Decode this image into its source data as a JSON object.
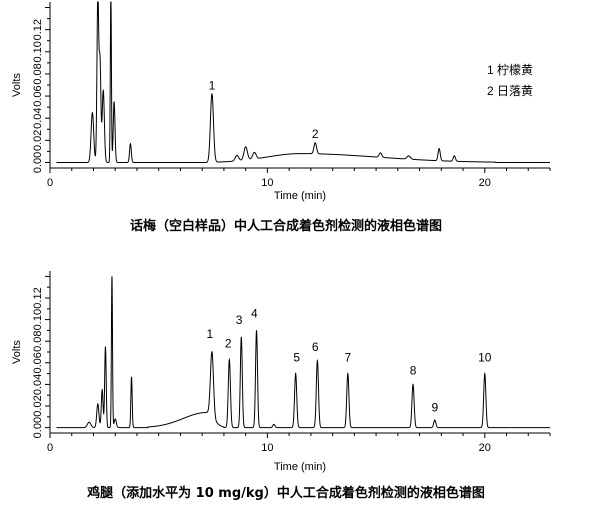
{
  "chart_data": [
    {
      "type": "line",
      "title": "话梅（空白样品）中人工合成着色剂检测的液相色谱图",
      "xlabel": "Time (min)",
      "ylabel": "Volts",
      "xlim": [
        0,
        23
      ],
      "ylim": [
        -0.005,
        0.145
      ],
      "x_ticks": [
        0,
        10,
        20
      ],
      "y_ticks": [
        0.0,
        0.02,
        0.04,
        0.06,
        0.08,
        0.1,
        0.12
      ],
      "y_tick_labels": [
        "0.00",
        "0.02",
        "0.04",
        "0.06",
        "0.08",
        "0.10",
        "0.12"
      ],
      "grid": false,
      "legend": [
        "1 柠檬黄",
        "2 日落黄"
      ],
      "baseline": 0.0,
      "hump": {
        "start": 7.6,
        "end": 20.5,
        "center": 11.5,
        "height": 0.008
      },
      "peaks": [
        {
          "t": 1.95,
          "h": 0.045,
          "w": 0.06
        },
        {
          "t": 2.2,
          "h": 0.15,
          "w": 0.04
        },
        {
          "t": 2.3,
          "h": 0.09,
          "w": 0.04
        },
        {
          "t": 2.45,
          "h": 0.065,
          "w": 0.05
        },
        {
          "t": 2.8,
          "h": 0.152,
          "w": 0.025
        },
        {
          "t": 2.95,
          "h": 0.055,
          "w": 0.04
        },
        {
          "t": 3.7,
          "h": 0.017,
          "w": 0.04
        },
        {
          "t": 7.45,
          "h": 0.062,
          "w": 0.07
        },
        {
          "t": 8.6,
          "h": 0.005,
          "w": 0.08
        },
        {
          "t": 9.0,
          "h": 0.012,
          "w": 0.08
        },
        {
          "t": 9.4,
          "h": 0.006,
          "w": 0.08
        },
        {
          "t": 12.2,
          "h": 0.01,
          "w": 0.06
        },
        {
          "t": 15.2,
          "h": 0.004,
          "w": 0.06
        },
        {
          "t": 16.5,
          "h": 0.003,
          "w": 0.08
        },
        {
          "t": 17.9,
          "h": 0.011,
          "w": 0.05
        },
        {
          "t": 18.6,
          "h": 0.005,
          "w": 0.05
        }
      ],
      "annotations": [
        {
          "label": "1",
          "t": 7.45,
          "v": 0.066
        },
        {
          "label": "2",
          "t": 12.2,
          "v": 0.022
        }
      ]
    },
    {
      "type": "line",
      "title": "鸡腿（添加水平为 10 mg/kg）中人工合成着色剂检测的液相色谱图",
      "xlabel": "Time (min)",
      "ylabel": "Volts",
      "xlim": [
        0,
        23
      ],
      "ylim": [
        -0.005,
        0.145
      ],
      "x_ticks": [
        0,
        10,
        20
      ],
      "y_ticks": [
        0.0,
        0.02,
        0.04,
        0.06,
        0.08,
        0.1,
        0.12
      ],
      "y_tick_labels": [
        "0.00",
        "0.02",
        "0.04",
        "0.06",
        "0.08",
        "0.10",
        "0.12"
      ],
      "grid": false,
      "baseline": 0.0,
      "hump": {
        "start": 4.5,
        "end": 8.0,
        "center": 7.2,
        "height": 0.014
      },
      "peaks": [
        {
          "t": 1.8,
          "h": 0.005,
          "w": 0.08
        },
        {
          "t": 2.2,
          "h": 0.022,
          "w": 0.05
        },
        {
          "t": 2.4,
          "h": 0.035,
          "w": 0.04
        },
        {
          "t": 2.55,
          "h": 0.075,
          "w": 0.035
        },
        {
          "t": 2.85,
          "h": 0.14,
          "w": 0.025
        },
        {
          "t": 3.0,
          "h": 0.008,
          "w": 0.05
        },
        {
          "t": 3.75,
          "h": 0.047,
          "w": 0.03
        },
        {
          "t": 7.45,
          "h": 0.06,
          "w": 0.07
        },
        {
          "t": 8.25,
          "h": 0.063,
          "w": 0.05
        },
        {
          "t": 8.8,
          "h": 0.084,
          "w": 0.045
        },
        {
          "t": 9.5,
          "h": 0.09,
          "w": 0.045
        },
        {
          "t": 10.3,
          "h": 0.003,
          "w": 0.05
        },
        {
          "t": 11.3,
          "h": 0.05,
          "w": 0.05
        },
        {
          "t": 12.3,
          "h": 0.062,
          "w": 0.05
        },
        {
          "t": 13.7,
          "h": 0.05,
          "w": 0.05
        },
        {
          "t": 16.7,
          "h": 0.04,
          "w": 0.05
        },
        {
          "t": 17.7,
          "h": 0.007,
          "w": 0.05
        },
        {
          "t": 20.0,
          "h": 0.05,
          "w": 0.05
        }
      ],
      "annotations": [
        {
          "label": "1",
          "t": 7.35,
          "v": 0.083
        },
        {
          "label": "2",
          "t": 8.2,
          "v": 0.074
        },
        {
          "label": "3",
          "t": 8.7,
          "v": 0.096
        },
        {
          "label": "4",
          "t": 9.4,
          "v": 0.102
        },
        {
          "label": "5",
          "t": 11.35,
          "v": 0.061
        },
        {
          "label": "6",
          "t": 12.2,
          "v": 0.071
        },
        {
          "label": "7",
          "t": 13.7,
          "v": 0.061
        },
        {
          "label": "8",
          "t": 16.7,
          "v": 0.049
        },
        {
          "label": "9",
          "t": 17.7,
          "v": 0.015
        },
        {
          "label": "10",
          "t": 20.0,
          "v": 0.061
        }
      ]
    }
  ]
}
